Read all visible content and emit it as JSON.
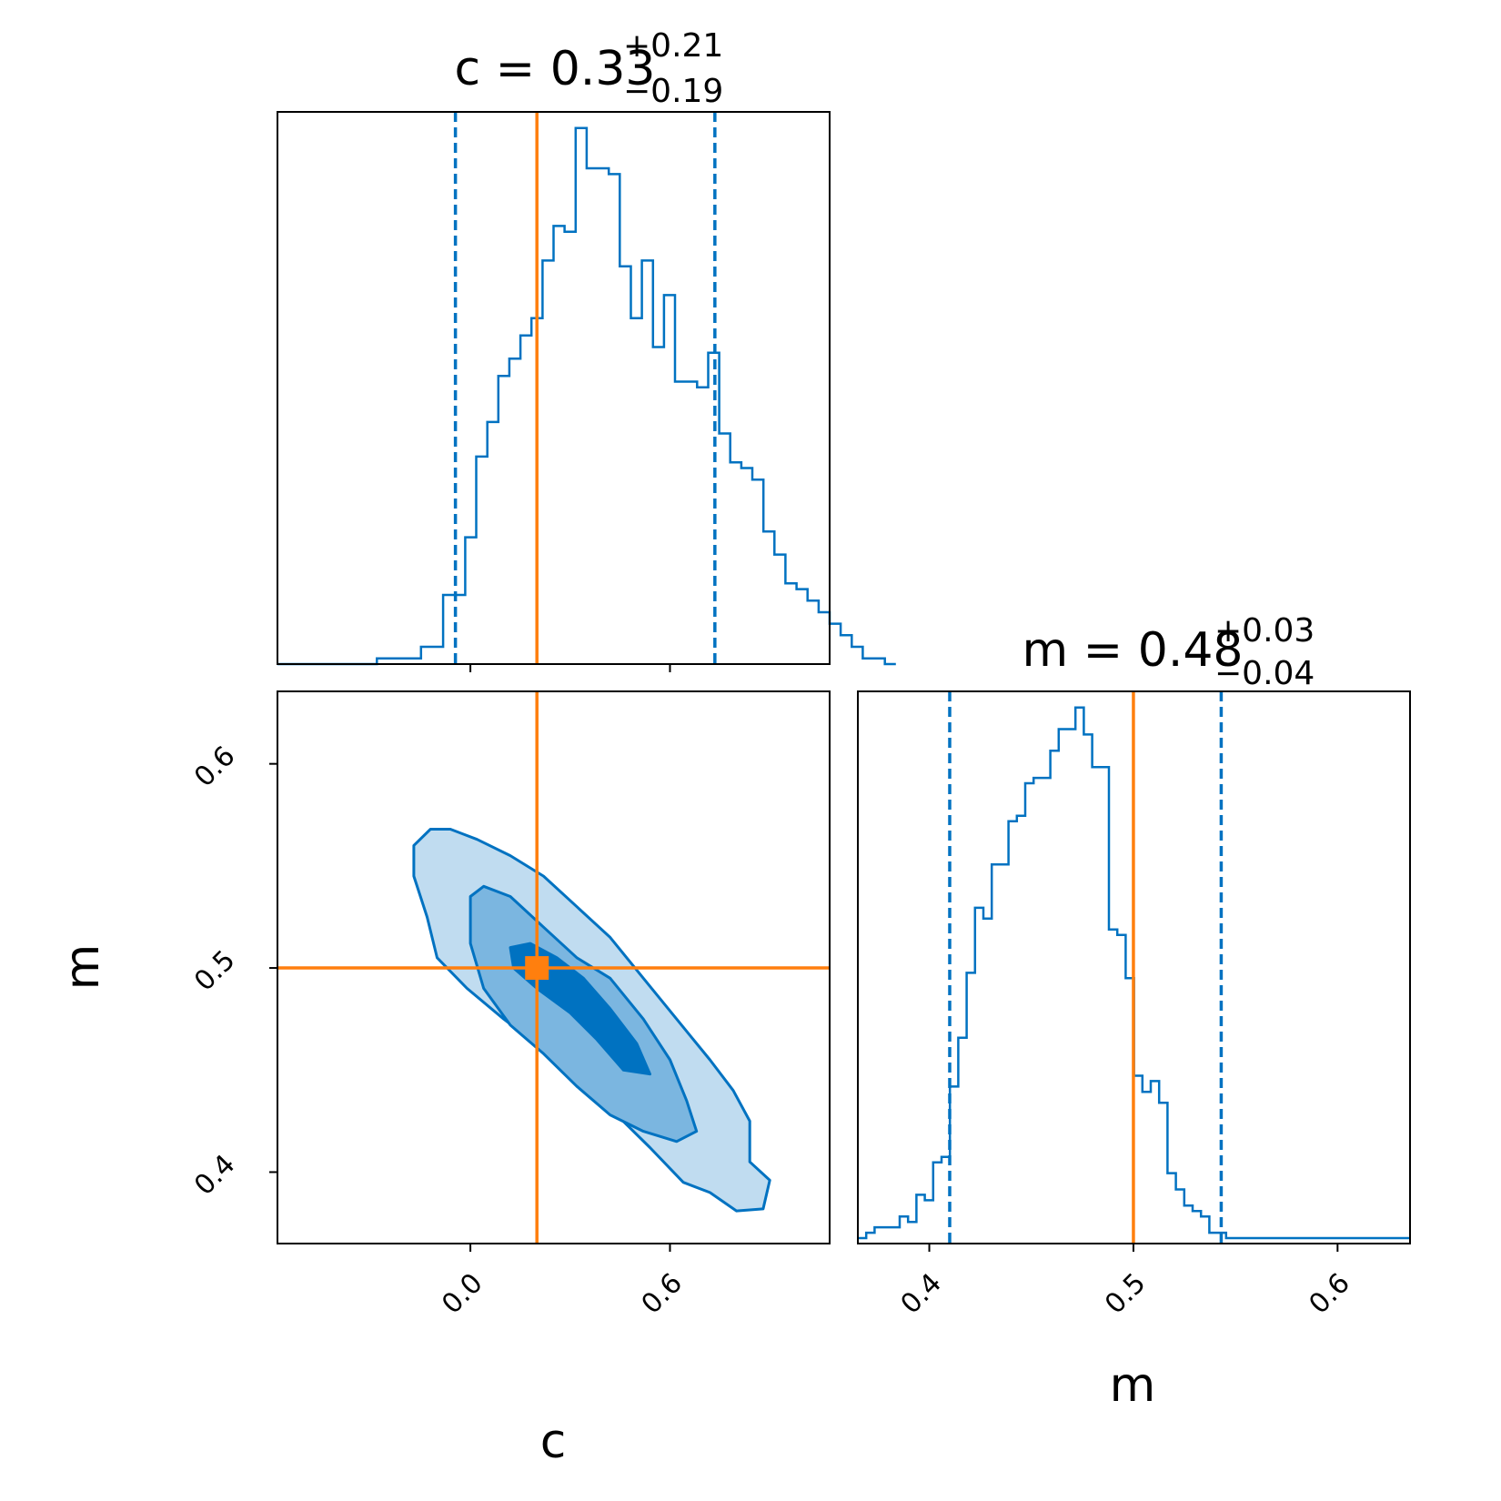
{
  "chart_data": [
    {
      "panel": "c-histogram",
      "type": "histogram",
      "title": {
        "prefix": "c = 0.33",
        "plus": "+0.21",
        "minus": "−0.19"
      },
      "x_range": [
        -0.58,
        1.08
      ],
      "quantiles": [
        -0.045,
        0.735
      ],
      "truth": 0.2,
      "bins": {
        "edges_start": -0.58,
        "width": 0.0332,
        "counts": [
          0,
          0,
          0,
          0,
          0,
          0,
          0,
          0,
          0,
          1,
          1,
          1,
          1,
          3,
          3,
          12,
          12,
          22,
          36,
          42,
          50,
          53,
          57,
          60,
          70,
          76,
          75,
          93,
          86,
          86,
          85,
          69,
          60,
          70,
          55,
          64,
          49,
          49,
          48,
          54,
          40,
          35,
          34,
          32,
          23,
          19,
          14,
          13,
          11,
          9,
          7,
          5,
          3,
          1,
          1,
          0
        ]
      },
      "show_tick_labels": false,
      "color": "#0072c1",
      "truth_color": "#ff7f0e"
    },
    {
      "panel": "c-m-2d",
      "type": "contour",
      "xlabel": "c",
      "ylabel": "m",
      "x_range": [
        -0.58,
        1.08
      ],
      "y_range": [
        0.365,
        0.6355
      ],
      "x_ticks": [
        0.0,
        0.6
      ],
      "x_tick_labels": [
        "0.0",
        "0.6"
      ],
      "y_ticks": [
        0.4,
        0.5,
        0.6
      ],
      "y_tick_labels": [
        "0.4",
        "0.5",
        "0.6"
      ],
      "truth": {
        "c": 0.2,
        "m": 0.5
      },
      "levels": [
        {
          "name": "outer",
          "fill": "#c0dcf0",
          "points": [
            [
              -0.17,
              0.545
            ],
            [
              -0.17,
              0.56
            ],
            [
              -0.12,
              0.568
            ],
            [
              -0.06,
              0.568
            ],
            [
              0.02,
              0.563
            ],
            [
              0.12,
              0.555
            ],
            [
              0.22,
              0.545
            ],
            [
              0.32,
              0.53
            ],
            [
              0.42,
              0.515
            ],
            [
              0.52,
              0.495
            ],
            [
              0.62,
              0.475
            ],
            [
              0.72,
              0.455
            ],
            [
              0.79,
              0.44
            ],
            [
              0.84,
              0.425
            ],
            [
              0.84,
              0.405
            ],
            [
              0.9,
              0.396
            ],
            [
              0.88,
              0.382
            ],
            [
              0.8,
              0.381
            ],
            [
              0.72,
              0.39
            ],
            [
              0.64,
              0.395
            ],
            [
              0.54,
              0.412
            ],
            [
              0.44,
              0.428
            ],
            [
              0.32,
              0.445
            ],
            [
              0.22,
              0.46
            ],
            [
              0.1,
              0.475
            ],
            [
              -0.01,
              0.49
            ],
            [
              -0.1,
              0.505
            ],
            [
              -0.13,
              0.525
            ]
          ]
        },
        {
          "name": "middle",
          "fill": "#7bb6e0",
          "points": [
            [
              0.0,
              0.535
            ],
            [
              0.04,
              0.54
            ],
            [
              0.12,
              0.535
            ],
            [
              0.22,
              0.52
            ],
            [
              0.32,
              0.505
            ],
            [
              0.42,
              0.495
            ],
            [
              0.52,
              0.475
            ],
            [
              0.6,
              0.455
            ],
            [
              0.65,
              0.435
            ],
            [
              0.68,
              0.42
            ],
            [
              0.62,
              0.415
            ],
            [
              0.52,
              0.42
            ],
            [
              0.42,
              0.428
            ],
            [
              0.32,
              0.442
            ],
            [
              0.22,
              0.458
            ],
            [
              0.12,
              0.472
            ],
            [
              0.04,
              0.49
            ],
            [
              0.0,
              0.512
            ]
          ]
        },
        {
          "name": "inner",
          "fill": "#0072c1",
          "points": [
            [
              0.12,
              0.51
            ],
            [
              0.18,
              0.512
            ],
            [
              0.26,
              0.505
            ],
            [
              0.34,
              0.495
            ],
            [
              0.42,
              0.48
            ],
            [
              0.5,
              0.463
            ],
            [
              0.54,
              0.448
            ],
            [
              0.46,
              0.45
            ],
            [
              0.38,
              0.465
            ],
            [
              0.3,
              0.478
            ],
            [
              0.2,
              0.49
            ],
            [
              0.13,
              0.5
            ]
          ]
        }
      ],
      "color": "#0072c1",
      "truth_color": "#ff7f0e"
    },
    {
      "panel": "m-histogram",
      "type": "histogram",
      "title": {
        "prefix": "m = 0.48",
        "plus": "+0.03",
        "minus": "−0.04"
      },
      "xlabel": "m",
      "x_range": [
        0.365,
        0.6355
      ],
      "x_ticks": [
        0.4,
        0.5,
        0.6
      ],
      "x_tick_labels": [
        "0.4",
        "0.5",
        "0.6"
      ],
      "quantiles": [
        0.41,
        0.543
      ],
      "truth": 0.5,
      "bins": {
        "edges_start": 0.365,
        "width": 0.0041,
        "counts": [
          1,
          2,
          3,
          3,
          3,
          5,
          4,
          9,
          8,
          15,
          16,
          29,
          38,
          50,
          62,
          60,
          70,
          70,
          78,
          79,
          85,
          86,
          86,
          91,
          95,
          95,
          99,
          94,
          88,
          88,
          58,
          57,
          49,
          31,
          28,
          30,
          26,
          13,
          10,
          7,
          6,
          5,
          2,
          2,
          1,
          1,
          1,
          1,
          1,
          1,
          1,
          1,
          1,
          1,
          1,
          1,
          1,
          1,
          1,
          1,
          1,
          1,
          1,
          1,
          1,
          1
        ]
      },
      "color": "#0072c1",
      "truth_color": "#ff7f0e"
    }
  ]
}
